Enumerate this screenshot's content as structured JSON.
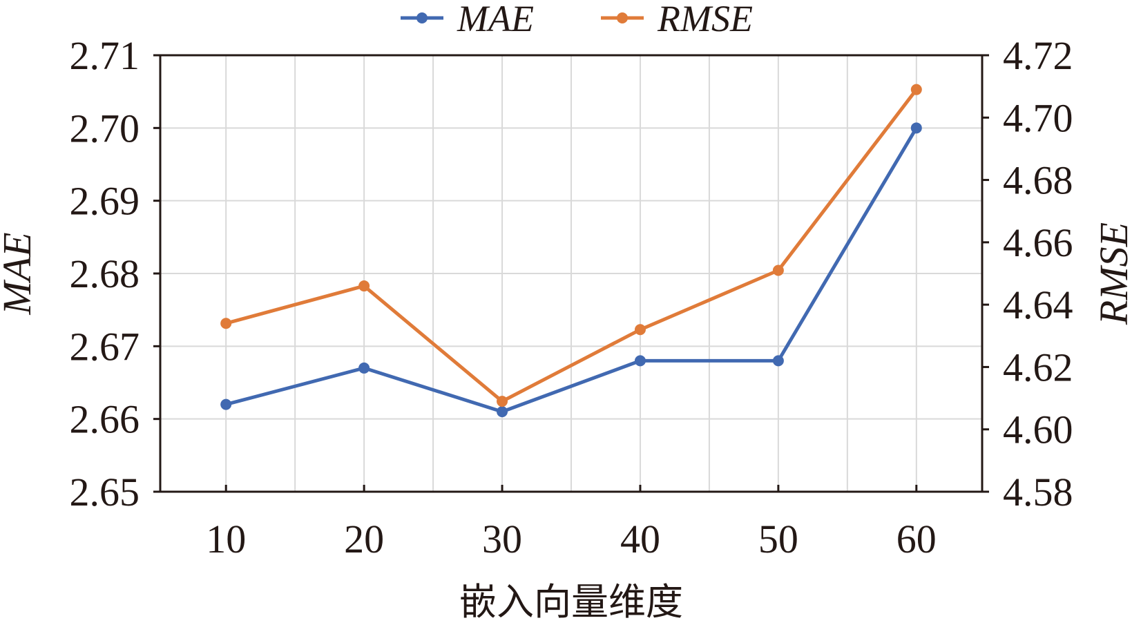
{
  "chart_data": {
    "type": "line",
    "categories": [
      "10",
      "20",
      "30",
      "40",
      "50",
      "60"
    ],
    "xlabel": "嵌入向量维度",
    "ylabel_left": "MAE",
    "ylabel_right": "RMSE",
    "ylim_left": [
      2.65,
      2.71
    ],
    "ylim_right": [
      4.58,
      4.72
    ],
    "yticks_left": [
      "2.65",
      "2.66",
      "2.67",
      "2.68",
      "2.69",
      "2.70",
      "2.71"
    ],
    "yticks_right": [
      "4.58",
      "4.60",
      "4.62",
      "4.64",
      "4.66",
      "4.68",
      "4.70",
      "4.72"
    ],
    "grid": true,
    "legend_position": "top",
    "series": [
      {
        "name": "MAE",
        "axis": "left",
        "color": "#4169b1",
        "values": [
          2.662,
          2.667,
          2.661,
          2.668,
          2.668,
          2.7
        ]
      },
      {
        "name": "RMSE",
        "axis": "right",
        "color": "#e07b39",
        "values": [
          4.634,
          4.646,
          4.609,
          4.632,
          4.651,
          4.709
        ]
      }
    ]
  }
}
